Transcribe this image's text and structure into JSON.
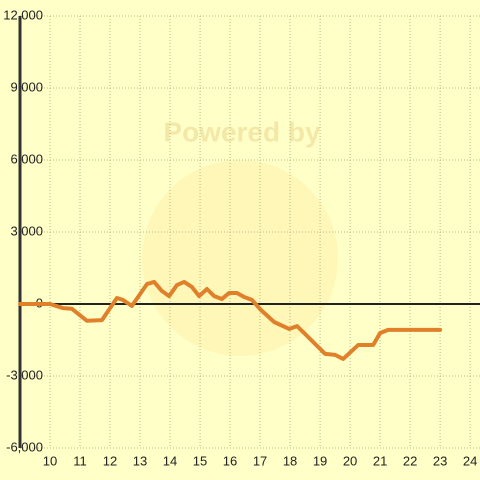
{
  "chart_data": {
    "type": "line",
    "watermark": "Powered by",
    "x": [
      9.0,
      10.0,
      10.43,
      10.73,
      11.23,
      11.73,
      12.23,
      12.43,
      12.73,
      13.23,
      13.47,
      13.73,
      13.97,
      14.23,
      14.47,
      14.73,
      14.97,
      15.23,
      15.47,
      15.73,
      15.97,
      16.23,
      16.47,
      16.73,
      17.03,
      17.47,
      17.97,
      18.23,
      18.47,
      19.17,
      19.5,
      19.77,
      20.27,
      20.77,
      21.0,
      21.27,
      23.0
    ],
    "series": [
      {
        "color": "#e0802a",
        "values": [
          0,
          0,
          -170,
          -200,
          -700,
          -670,
          250,
          170,
          -80,
          830,
          920,
          540,
          330,
          790,
          920,
          710,
          330,
          625,
          330,
          210,
          460,
          460,
          290,
          170,
          -250,
          -750,
          -1040,
          -920,
          -1210,
          -2080,
          -2120,
          -2290,
          -1710,
          -1710,
          -1210,
          -1080,
          -1080
        ]
      }
    ],
    "xlim": [
      9,
      24.33
    ],
    "xticks": [
      10,
      11,
      12,
      13,
      14,
      15,
      16,
      17,
      18,
      19,
      20,
      21,
      22,
      23,
      24
    ],
    "ylim": [
      -6000,
      12000
    ],
    "yticks": [
      {
        "value": -6000,
        "label": "-6,000"
      },
      {
        "value": -3000,
        "label": "-3,000"
      },
      0,
      {
        "value": 3000,
        "label": "3,000"
      },
      {
        "value": 6000,
        "label": "6,000"
      },
      {
        "value": 9000,
        "label": "9,000"
      },
      {
        "value": 12000,
        "label": "12,000"
      }
    ],
    "grid": true
  }
}
